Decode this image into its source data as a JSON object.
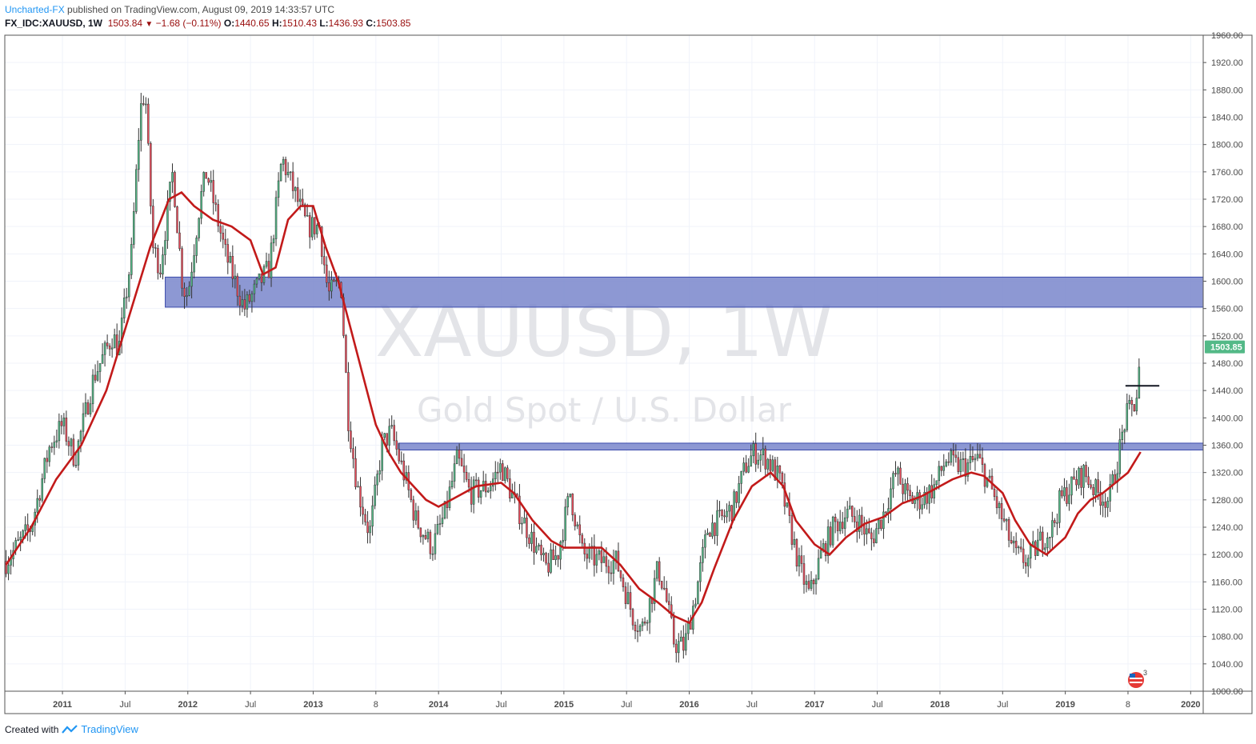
{
  "header": {
    "author": "Uncharted-FX",
    "published_text": "published on TradingView.com, August 09, 2019 14:33:57 UTC"
  },
  "ohlc": {
    "symbol": "FX_IDC:XAUUSD, 1W",
    "last": "1503.84",
    "change": "−1.68 (−0.11%)",
    "o_label": "O:",
    "o": "1440.65",
    "h_label": "H:",
    "h": "1510.43",
    "l_label": "L:",
    "l": "1436.93",
    "c_label": "C:",
    "c": "1503.85"
  },
  "footer": {
    "created_with": "Created with",
    "brand": "TradingView"
  },
  "colors": {
    "bull": "#53b987",
    "bear": "#eb4d5c",
    "ma": "#c21a1a",
    "zone_fill": "#7986cb",
    "zone_border": "#3949ab",
    "price_label": "#53b987"
  },
  "chart_data": {
    "type": "candlestick",
    "watermark_symbol": "XAUUSD, 1W",
    "watermark_desc": "Gold Spot / U.S. Dollar",
    "ylim": [
      1000,
      1960
    ],
    "y_ticks": [
      "1960.00",
      "1920.00",
      "1880.00",
      "1840.00",
      "1800.00",
      "1760.00",
      "1720.00",
      "1680.00",
      "1640.00",
      "1600.00",
      "1560.00",
      "1520.00",
      "1480.00",
      "1440.00",
      "1400.00",
      "1360.00",
      "1320.00",
      "1280.00",
      "1240.00",
      "1200.00",
      "1160.00",
      "1120.00",
      "1080.00",
      "1040.00",
      "1000.00"
    ],
    "x_ticks": [
      {
        "label": "2011",
        "t": 2011.0
      },
      {
        "label": "Jul",
        "t": 2011.5
      },
      {
        "label": "2012",
        "t": 2012.0
      },
      {
        "label": "Jul",
        "t": 2012.5
      },
      {
        "label": "2013",
        "t": 2013.0
      },
      {
        "label": "8",
        "t": 2013.5
      },
      {
        "label": "2014",
        "t": 2014.0
      },
      {
        "label": "Jul",
        "t": 2014.5
      },
      {
        "label": "2015",
        "t": 2015.0
      },
      {
        "label": "Jul",
        "t": 2015.5
      },
      {
        "label": "2016",
        "t": 2016.0
      },
      {
        "label": "Jul",
        "t": 2016.5
      },
      {
        "label": "2017",
        "t": 2017.0
      },
      {
        "label": "Jul",
        "t": 2017.5
      },
      {
        "label": "2018",
        "t": 2018.0
      },
      {
        "label": "Jul",
        "t": 2018.5
      },
      {
        "label": "2019",
        "t": 2019.0
      },
      {
        "label": "8",
        "t": 2019.5
      },
      {
        "label": "2020",
        "t": 2020.0
      }
    ],
    "xlim": [
      2010.54,
      2020.1
    ],
    "last_price": "1503.85",
    "zones": [
      {
        "t_start": 2011.82,
        "t_end": 2020.1,
        "low": 1562,
        "high": 1606
      },
      {
        "t_start": 2013.68,
        "t_end": 2020.1,
        "low": 1353,
        "high": 1363
      }
    ],
    "hline": {
      "t_start": 2019.48,
      "t_end": 2019.75,
      "value": 1447
    },
    "price_path": [
      [
        2010.55,
        1190
      ],
      [
        2010.75,
        1240
      ],
      [
        2010.9,
        1360
      ],
      [
        2011.0,
        1390
      ],
      [
        2011.1,
        1340
      ],
      [
        2011.25,
        1460
      ],
      [
        2011.4,
        1520
      ],
      [
        2011.45,
        1500
      ],
      [
        2011.55,
        1640
      ],
      [
        2011.62,
        1850
      ],
      [
        2011.66,
        1880
      ],
      [
        2011.72,
        1650
      ],
      [
        2011.78,
        1620
      ],
      [
        2011.88,
        1760
      ],
      [
        2011.96,
        1590
      ],
      [
        2012.0,
        1580
      ],
      [
        2012.1,
        1720
      ],
      [
        2012.15,
        1760
      ],
      [
        2012.3,
        1640
      ],
      [
        2012.45,
        1560
      ],
      [
        2012.55,
        1590
      ],
      [
        2012.65,
        1620
      ],
      [
        2012.75,
        1780
      ],
      [
        2012.85,
        1730
      ],
      [
        2012.95,
        1680
      ],
      [
        2013.05,
        1680
      ],
      [
        2013.12,
        1580
      ],
      [
        2013.22,
        1600
      ],
      [
        2013.28,
        1400
      ],
      [
        2013.35,
        1300
      ],
      [
        2013.45,
        1230
      ],
      [
        2013.55,
        1360
      ],
      [
        2013.62,
        1380
      ],
      [
        2013.72,
        1320
      ],
      [
        2013.82,
        1250
      ],
      [
        2013.95,
        1210
      ],
      [
        2014.05,
        1260
      ],
      [
        2014.15,
        1340
      ],
      [
        2014.25,
        1290
      ],
      [
        2014.4,
        1300
      ],
      [
        2014.5,
        1330
      ],
      [
        2014.6,
        1280
      ],
      [
        2014.75,
        1220
      ],
      [
        2014.85,
        1180
      ],
      [
        2014.95,
        1200
      ],
      [
        2015.05,
        1290
      ],
      [
        2015.15,
        1200
      ],
      [
        2015.3,
        1190
      ],
      [
        2015.42,
        1190
      ],
      [
        2015.55,
        1110
      ],
      [
        2015.62,
        1090
      ],
      [
        2015.7,
        1140
      ],
      [
        2015.75,
        1180
      ],
      [
        2015.8,
        1150
      ],
      [
        2015.88,
        1070
      ],
      [
        2015.96,
        1065
      ],
      [
        2016.05,
        1140
      ],
      [
        2016.15,
        1240
      ],
      [
        2016.25,
        1250
      ],
      [
        2016.35,
        1270
      ],
      [
        2016.45,
        1330
      ],
      [
        2016.52,
        1350
      ],
      [
        2016.62,
        1340
      ],
      [
        2016.72,
        1310
      ],
      [
        2016.78,
        1260
      ],
      [
        2016.88,
        1180
      ],
      [
        2016.96,
        1140
      ],
      [
        2017.05,
        1200
      ],
      [
        2017.15,
        1240
      ],
      [
        2017.25,
        1260
      ],
      [
        2017.35,
        1250
      ],
      [
        2017.45,
        1220
      ],
      [
        2017.55,
        1260
      ],
      [
        2017.65,
        1320
      ],
      [
        2017.75,
        1280
      ],
      [
        2017.85,
        1280
      ],
      [
        2017.96,
        1300
      ],
      [
        2018.05,
        1340
      ],
      [
        2018.12,
        1330
      ],
      [
        2018.22,
        1330
      ],
      [
        2018.3,
        1340
      ],
      [
        2018.4,
        1300
      ],
      [
        2018.5,
        1250
      ],
      [
        2018.6,
        1200
      ],
      [
        2018.7,
        1190
      ],
      [
        2018.8,
        1220
      ],
      [
        2018.9,
        1240
      ],
      [
        2018.96,
        1280
      ],
      [
        2019.05,
        1300
      ],
      [
        2019.15,
        1320
      ],
      [
        2019.25,
        1290
      ],
      [
        2019.35,
        1280
      ],
      [
        2019.42,
        1340
      ],
      [
        2019.48,
        1400
      ],
      [
        2019.55,
        1420
      ],
      [
        2019.58,
        1440
      ],
      [
        2019.6,
        1504
      ]
    ],
    "ma_path": [
      [
        2010.55,
        1185
      ],
      [
        2010.75,
        1240
      ],
      [
        2010.95,
        1310
      ],
      [
        2011.15,
        1360
      ],
      [
        2011.35,
        1440
      ],
      [
        2011.55,
        1560
      ],
      [
        2011.7,
        1650
      ],
      [
        2011.85,
        1720
      ],
      [
        2011.95,
        1730
      ],
      [
        2012.05,
        1710
      ],
      [
        2012.2,
        1690
      ],
      [
        2012.35,
        1680
      ],
      [
        2012.5,
        1660
      ],
      [
        2012.6,
        1610
      ],
      [
        2012.7,
        1620
      ],
      [
        2012.8,
        1690
      ],
      [
        2012.9,
        1710
      ],
      [
        2013.0,
        1710
      ],
      [
        2013.1,
        1650
      ],
      [
        2013.2,
        1600
      ],
      [
        2013.3,
        1530
      ],
      [
        2013.4,
        1460
      ],
      [
        2013.5,
        1390
      ],
      [
        2013.6,
        1350
      ],
      [
        2013.7,
        1320
      ],
      [
        2013.8,
        1300
      ],
      [
        2013.9,
        1280
      ],
      [
        2014.0,
        1270
      ],
      [
        2014.15,
        1285
      ],
      [
        2014.3,
        1300
      ],
      [
        2014.5,
        1305
      ],
      [
        2014.6,
        1290
      ],
      [
        2014.75,
        1250
      ],
      [
        2014.9,
        1220
      ],
      [
        2015.0,
        1210
      ],
      [
        2015.15,
        1210
      ],
      [
        2015.3,
        1210
      ],
      [
        2015.45,
        1185
      ],
      [
        2015.6,
        1150
      ],
      [
        2015.75,
        1130
      ],
      [
        2015.88,
        1110
      ],
      [
        2016.0,
        1100
      ],
      [
        2016.1,
        1130
      ],
      [
        2016.2,
        1180
      ],
      [
        2016.35,
        1250
      ],
      [
        2016.5,
        1300
      ],
      [
        2016.65,
        1320
      ],
      [
        2016.75,
        1300
      ],
      [
        2016.85,
        1250
      ],
      [
        2017.0,
        1215
      ],
      [
        2017.12,
        1200
      ],
      [
        2017.25,
        1225
      ],
      [
        2017.4,
        1245
      ],
      [
        2017.55,
        1255
      ],
      [
        2017.7,
        1275
      ],
      [
        2017.85,
        1285
      ],
      [
        2017.95,
        1295
      ],
      [
        2018.1,
        1310
      ],
      [
        2018.25,
        1320
      ],
      [
        2018.35,
        1315
      ],
      [
        2018.5,
        1290
      ],
      [
        2018.6,
        1250
      ],
      [
        2018.72,
        1215
      ],
      [
        2018.85,
        1200
      ],
      [
        2019.0,
        1225
      ],
      [
        2019.1,
        1260
      ],
      [
        2019.2,
        1280
      ],
      [
        2019.3,
        1290
      ],
      [
        2019.4,
        1305
      ],
      [
        2019.5,
        1320
      ],
      [
        2019.6,
        1350
      ]
    ]
  }
}
